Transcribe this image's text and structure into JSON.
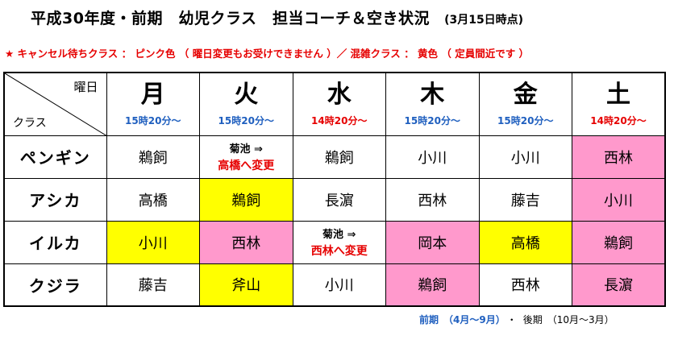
{
  "title": "平成30年度・前期　幼児クラス　担当コーチ＆空き状況",
  "as_of": "(3月15日時点)",
  "legend": "★ キャンセル待ちクラス ： ピンク色 （ 曜日変更もお受けできません ）／ 混雑クラス ： 黄色 （ 定員間近です ）",
  "corner": {
    "top": "曜日",
    "bottom": "クラス"
  },
  "colors": {
    "yellow": "#ffff00",
    "pink": "#ff99cc",
    "blue": "#1f5fbf",
    "red": "#e60000"
  },
  "days": [
    {
      "name": "月",
      "time": "15時20分～",
      "time_color": "blue"
    },
    {
      "name": "火",
      "time": "15時20分～",
      "time_color": "blue"
    },
    {
      "name": "水",
      "time": "14時20分～",
      "time_color": "red"
    },
    {
      "name": "木",
      "time": "15時20分～",
      "time_color": "blue"
    },
    {
      "name": "金",
      "time": "15時20分～",
      "time_color": "blue"
    },
    {
      "name": "土",
      "time": "14時20分～",
      "time_color": "red"
    }
  ],
  "rows": [
    {
      "class": "ペンギン",
      "cells": [
        {
          "coach": "鵜飼",
          "status": "none"
        },
        {
          "change_from": "菊池 ⇒",
          "change_to": "高橋へ変更",
          "status": "none"
        },
        {
          "coach": "鵜飼",
          "status": "none"
        },
        {
          "coach": "小川",
          "status": "none"
        },
        {
          "coach": "小川",
          "status": "none"
        },
        {
          "coach": "西林",
          "status": "pink"
        }
      ]
    },
    {
      "class": "アシカ",
      "cells": [
        {
          "coach": "高橋",
          "status": "none"
        },
        {
          "coach": "鵜飼",
          "status": "yellow"
        },
        {
          "coach": "長濵",
          "status": "none"
        },
        {
          "coach": "西林",
          "status": "none"
        },
        {
          "coach": "藤吉",
          "status": "none"
        },
        {
          "coach": "小川",
          "status": "pink"
        }
      ]
    },
    {
      "class": "イルカ",
      "cells": [
        {
          "coach": "小川",
          "status": "yellow"
        },
        {
          "coach": "西林",
          "status": "pink"
        },
        {
          "change_from": "菊池 ⇒",
          "change_to": "西林へ変更",
          "status": "none"
        },
        {
          "coach": "岡本",
          "status": "pink"
        },
        {
          "coach": "高橋",
          "status": "yellow"
        },
        {
          "coach": "鵜飼",
          "status": "pink"
        }
      ]
    },
    {
      "class": "クジラ",
      "cells": [
        {
          "coach": "藤吉",
          "status": "none"
        },
        {
          "coach": "斧山",
          "status": "yellow"
        },
        {
          "coach": "小川",
          "status": "none"
        },
        {
          "coach": "鵜飼",
          "status": "pink"
        },
        {
          "coach": "西林",
          "status": "none"
        },
        {
          "coach": "長濵",
          "status": "pink"
        }
      ]
    }
  ],
  "footer": {
    "first": "前期　（4月～9月）",
    "separator": "・",
    "second": "後期　（10月～3月）"
  }
}
